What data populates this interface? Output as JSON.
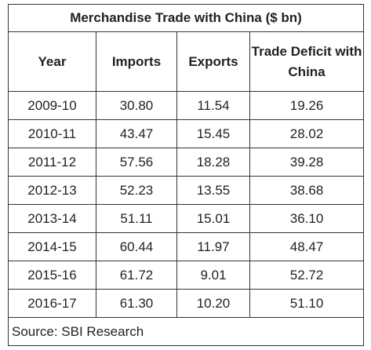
{
  "table": {
    "title": "Merchandise Trade with China ($ bn)",
    "header": [
      "Year",
      "Imports",
      "Exports",
      "Trade Deficit with China"
    ],
    "rows": [
      [
        "2009-10",
        "30.80",
        "11.54",
        "19.26"
      ],
      [
        "2010-11",
        "43.47",
        "15.45",
        "28.02"
      ],
      [
        "2011-12",
        "57.56",
        "18.28",
        "39.28"
      ],
      [
        "2012-13",
        "52.23",
        "13.55",
        "38.68"
      ],
      [
        "2013-14",
        "51.11",
        "15.01",
        "36.10"
      ],
      [
        "2014-15",
        "60.44",
        "11.97",
        "48.47"
      ],
      [
        "2015-16",
        "61.72",
        "9.01",
        "52.72"
      ],
      [
        "2016-17",
        "61.30",
        "10.20",
        "51.10"
      ]
    ],
    "source": "Source: SBI Research"
  }
}
